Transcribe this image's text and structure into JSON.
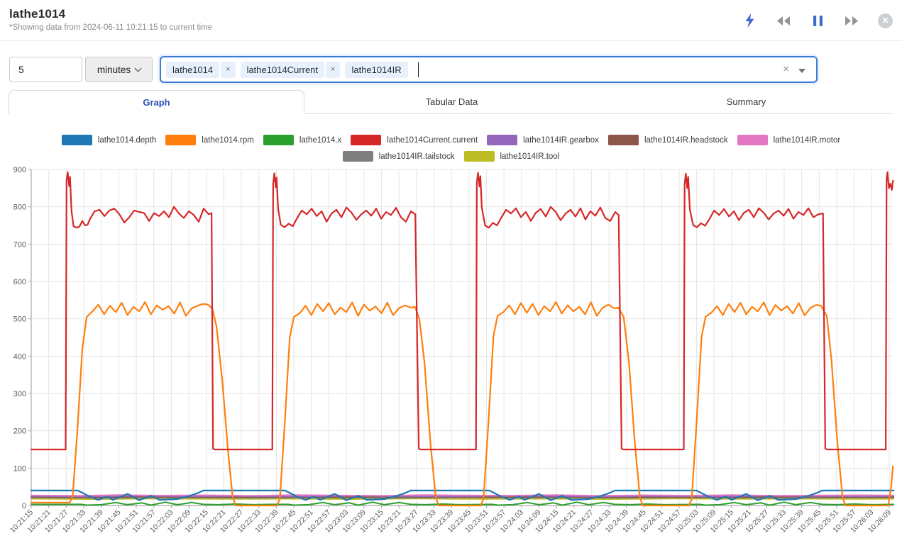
{
  "header": {
    "title": "lathe1014",
    "subtitle": "*Showing data from 2024-06-11 10:21:15 to current time",
    "toolbar_icons": [
      "lightning-icon",
      "rewind-icon",
      "pause-icon",
      "fast-forward-icon",
      "close-icon"
    ]
  },
  "controls": {
    "interval_value": "5",
    "interval_unit": "minutes",
    "selected_tags": [
      {
        "label": "lathe1014",
        "removable": true
      },
      {
        "label": "lathe1014Current",
        "removable": true
      },
      {
        "label": "lathe1014IR",
        "removable": false
      }
    ],
    "clear_icon": "×"
  },
  "tabs": [
    {
      "label": "Graph",
      "active": true
    },
    {
      "label": "Tabular Data",
      "active": false
    },
    {
      "label": "Summary",
      "active": false
    }
  ],
  "chart_data": {
    "type": "line",
    "title": "",
    "xlabel": "",
    "ylabel": "",
    "ylim": [
      0,
      900
    ],
    "y_ticks": [
      0,
      100,
      200,
      300,
      400,
      500,
      600,
      700,
      800,
      900
    ],
    "grid": true,
    "legend_position": "top-center",
    "legend_rows": [
      7,
      2
    ],
    "x_axis": "time (HH:MM:SS), one tick every 6 seconds",
    "x_tick_interval_seconds": 6,
    "x_tick_labels": [
      "10:21:15",
      "10:21:21",
      "10:21:27",
      "10:21:33",
      "10:21:39",
      "10:21:45",
      "10:21:51",
      "10:21:57",
      "10:22:03",
      "10:22:09",
      "10:22:15",
      "10:22:21",
      "10:22:27",
      "10:22:33",
      "10:22:39",
      "10:22:45",
      "10:22:51",
      "10:22:57",
      "10:23:03",
      "10:23:09",
      "10:23:15",
      "10:23:21",
      "10:23:27",
      "10:23:33",
      "10:23:39",
      "10:23:45",
      "10:23:51",
      "10:23:57",
      "10:24:03",
      "10:24:09",
      "10:24:15",
      "10:24:21",
      "10:24:27",
      "10:24:33",
      "10:24:39",
      "10:24:45",
      "10:24:51",
      "10:24:57",
      "10:25:03",
      "10:25:09",
      "10:25:15",
      "10:25:21",
      "10:25:27",
      "10:25:33",
      "10:25:39",
      "10:25:45",
      "10:25:51",
      "10:25:57",
      "10:26:03",
      "10:26:09"
    ],
    "points_format": "flat array [t0,v0,t1,v1,...] with t = seconds after 10:21:15",
    "draw_order": [
      "lathe1014IR.tool",
      "lathe1014IR.tailstock",
      "lathe1014IR.headstock",
      "lathe1014IR.gearbox",
      "lathe1014IR.motor",
      "lathe1014.x",
      "lathe1014.depth",
      "lathe1014.rpm",
      "lathe1014Current.current"
    ],
    "series": [
      {
        "name": "lathe1014.depth",
        "color": "#1f77b4",
        "points": [
          0,
          40,
          16,
          40,
          20,
          24,
          23,
          15,
          26,
          24,
          28,
          15,
          33,
          31,
          37,
          14,
          41,
          26,
          44,
          15,
          50,
          17,
          54,
          25,
          57,
          33,
          59,
          40,
          87,
          40,
          91,
          24,
          94,
          15,
          97,
          24,
          99,
          15,
          104,
          31,
          108,
          14,
          112,
          26,
          115,
          15,
          121,
          17,
          125,
          25,
          128,
          33,
          130,
          40,
          157,
          40,
          161,
          24,
          164,
          15,
          167,
          24,
          169,
          15,
          174,
          31,
          178,
          14,
          182,
          26,
          185,
          15,
          191,
          17,
          195,
          25,
          198,
          33,
          200,
          40,
          228,
          40,
          232,
          24,
          235,
          15,
          238,
          24,
          240,
          15,
          245,
          31,
          249,
          14,
          253,
          26,
          256,
          15,
          262,
          17,
          266,
          25,
          269,
          33,
          271,
          40,
          295.5,
          40
        ]
      },
      {
        "name": "lathe1014.rpm",
        "color": "#ff7f0e",
        "points": [
          0,
          8,
          13.2,
          8,
          14.2,
          25,
          15.8,
          200,
          17.5,
          420,
          19,
          505,
          21,
          520,
          23,
          538,
          25,
          512,
          27,
          535,
          29,
          518,
          31,
          543,
          33,
          510,
          35,
          532,
          37,
          520,
          39,
          545,
          41,
          512,
          43,
          536,
          45,
          524,
          47,
          534,
          49,
          514,
          51,
          544,
          53,
          508,
          55,
          528,
          57,
          535,
          59,
          540,
          60.5,
          538,
          62,
          528,
          63.5,
          480,
          65.5,
          330,
          67.5,
          140,
          69,
          25,
          70,
          0,
          84.2,
          0,
          85.2,
          18,
          86.8,
          210,
          88.6,
          450,
          90,
          505,
          92,
          515,
          94,
          535,
          96,
          510,
          98,
          540,
          100,
          520,
          102,
          542,
          104,
          512,
          106,
          530,
          108,
          518,
          110,
          544,
          112,
          508,
          114,
          538,
          116,
          522,
          118,
          533,
          120,
          515,
          122,
          543,
          124,
          510,
          126,
          528,
          128,
          536,
          130,
          530,
          131.5,
          532,
          133,
          500,
          134.8,
          380,
          136.8,
          165,
          138.6,
          22,
          139.6,
          0,
          154,
          0,
          155,
          18,
          156.6,
          215,
          158.4,
          455,
          159.8,
          508,
          161.8,
          518,
          163.8,
          536,
          165.8,
          512,
          167.8,
          542,
          169.8,
          516,
          171.8,
          540,
          173.8,
          510,
          175.8,
          534,
          177.8,
          520,
          179.8,
          545,
          181.8,
          514,
          183.8,
          536,
          185.8,
          520,
          187.8,
          532,
          189.8,
          512,
          191.8,
          544,
          193.8,
          508,
          195.8,
          530,
          197.8,
          538,
          199.8,
          528,
          201.2,
          530,
          203,
          505,
          204.8,
          385,
          206.8,
          170,
          208.6,
          20,
          209.6,
          0,
          225.3,
          0,
          226.3,
          16,
          227.9,
          212,
          229.7,
          452,
          231.1,
          506,
          233,
          516,
          235,
          534,
          237,
          510,
          239,
          540,
          241,
          518,
          243,
          543,
          245,
          512,
          247,
          532,
          249,
          520,
          251,
          544,
          253,
          510,
          255,
          537,
          257,
          522,
          259,
          534,
          261,
          514,
          263,
          542,
          265,
          509,
          267,
          529,
          269,
          537,
          270.6,
          535,
          272.6,
          508,
          274.2,
          390,
          276.2,
          172,
          278,
          22,
          279,
          0,
          293.6,
          0,
          294.6,
          45,
          295.3,
          105
        ]
      },
      {
        "name": "lathe1014.x",
        "color": "#2ca02c",
        "points": [
          0,
          3,
          17,
          3,
          19,
          1,
          24,
          2,
          29,
          8,
          33,
          2,
          38,
          7,
          41,
          1,
          46,
          9,
          50,
          2,
          55,
          8,
          59,
          3,
          64,
          2,
          70,
          4,
          76,
          2,
          82,
          3,
          88,
          3,
          90,
          1,
          95,
          2,
          100,
          8,
          104,
          2,
          109,
          7,
          112,
          1,
          117,
          9,
          121,
          2,
          126,
          8,
          130,
          3,
          135,
          2,
          141,
          4,
          147,
          2,
          158,
          3,
          160,
          1,
          165,
          2,
          170,
          8,
          174,
          2,
          179,
          7,
          182,
          1,
          187,
          9,
          191,
          2,
          196,
          8,
          200,
          3,
          205,
          2,
          211,
          4,
          217,
          2,
          229,
          3,
          231,
          1,
          236,
          2,
          241,
          8,
          245,
          2,
          250,
          7,
          253,
          1,
          258,
          9,
          262,
          2,
          267,
          8,
          271,
          3,
          276,
          2,
          282,
          4,
          288,
          2,
          295.5,
          3
        ]
      },
      {
        "name": "lathe1014Current.current",
        "color": "#d62728",
        "points": [
          0,
          150,
          11.8,
          150,
          12.1,
          870,
          12.5,
          893,
          13,
          855,
          13.3,
          880,
          13.8,
          790,
          14.5,
          748,
          15.5,
          744,
          16.5,
          747,
          17.5,
          762,
          18.5,
          750,
          19.3,
          752,
          20,
          765,
          21.7,
          788,
          23.4,
          792,
          25.1,
          775,
          26.8,
          790,
          28.5,
          795,
          30.2,
          780,
          31.9,
          758,
          33.6,
          772,
          35.3,
          790,
          37,
          786,
          38.7,
          783,
          40.4,
          762,
          42.1,
          783,
          43.8,
          775,
          45.5,
          788,
          47.2,
          772,
          48.9,
          800,
          50.6,
          782,
          52.3,
          770,
          54,
          788,
          55.7,
          778,
          57.4,
          760,
          59.1,
          795,
          60.8,
          780,
          61.8,
          783,
          62.3,
          152,
          63,
          150,
          82.6,
          150,
          82.9,
          862,
          83.3,
          890,
          83.8,
          852,
          84.1,
          878,
          84.6,
          795,
          85.5,
          752,
          86.8,
          745,
          88.2,
          755,
          89.6,
          748,
          91,
          768,
          92.7,
          790,
          94.4,
          780,
          96.1,
          795,
          97.8,
          775,
          99.5,
          788,
          101.2,
          760,
          102.9,
          782,
          104.6,
          792,
          106.3,
          772,
          108,
          798,
          109.7,
          785,
          111.4,
          765,
          113.1,
          780,
          114.8,
          790,
          116.5,
          776,
          118.2,
          795,
          119.9,
          768,
          121.6,
          786,
          123.3,
          778,
          125,
          797,
          126.7,
          772,
          128.4,
          760,
          130.1,
          788,
          131.6,
          780,
          132.8,
          152,
          133.5,
          150,
          152.4,
          150,
          152.7,
          865,
          153.1,
          891,
          153.6,
          854,
          153.9,
          882,
          154.4,
          798,
          155.5,
          750,
          156.8,
          744,
          158.2,
          757,
          159.6,
          750,
          161,
          770,
          162.7,
          792,
          164.4,
          782,
          166.1,
          796,
          167.8,
          772,
          169.5,
          786,
          171.2,
          762,
          172.9,
          784,
          174.6,
          794,
          176.3,
          774,
          178,
          800,
          179.7,
          786,
          181.4,
          764,
          183.1,
          782,
          184.8,
          792,
          186.5,
          774,
          188.2,
          796,
          189.9,
          766,
          191.6,
          788,
          193.3,
          776,
          195,
          798,
          196.7,
          770,
          198.4,
          762,
          200.1,
          786,
          201.3,
          778,
          202.3,
          152,
          203,
          150,
          223.6,
          150,
          223.9,
          860,
          224.3,
          889,
          224.8,
          850,
          225.1,
          880,
          225.7,
          792,
          226.8,
          751,
          228.1,
          745,
          229.5,
          756,
          230.9,
          749,
          232.3,
          766,
          234,
          790,
          235.7,
          778,
          237.4,
          794,
          239.1,
          774,
          240.8,
          788,
          242.5,
          764,
          244.2,
          784,
          245.9,
          792,
          247.6,
          772,
          249.3,
          796,
          251,
          784,
          252.7,
          766,
          254.4,
          782,
          256.1,
          790,
          257.8,
          776,
          259.5,
          794,
          261.2,
          768,
          262.9,
          786,
          264.6,
          778,
          266.3,
          796,
          268,
          772,
          269.7,
          780,
          271.3,
          782,
          272.1,
          152,
          272.8,
          150,
          292.8,
          150,
          293.1,
          875,
          293.4,
          893,
          293.9,
          850,
          294.4,
          862,
          294.9,
          845,
          295.3,
          870
        ]
      },
      {
        "name": "lathe1014IR.gearbox",
        "color": "#9467bd",
        "points": [
          0,
          25,
          18,
          24,
          36,
          26,
          54,
          24.5,
          72,
          25.5,
          90,
          24,
          108,
          26,
          126,
          25,
          144,
          24,
          162,
          26,
          180,
          25,
          198,
          24.5,
          216,
          25.5,
          234,
          24,
          252,
          26,
          270,
          25,
          285,
          24.5,
          295.5,
          25
        ]
      },
      {
        "name": "lathe1014IR.headstock",
        "color": "#8c564b",
        "points": [
          0,
          23,
          20,
          22,
          40,
          23.5,
          60,
          22.5,
          80,
          23,
          100,
          22,
          120,
          23.5,
          140,
          23,
          160,
          22,
          180,
          23.5,
          200,
          22.5,
          220,
          23,
          240,
          22,
          260,
          23.5,
          280,
          22.5,
          295.5,
          23
        ]
      },
      {
        "name": "lathe1014IR.motor",
        "color": "#e377c2",
        "points": [
          0,
          27,
          15,
          26,
          30,
          28,
          45,
          26.5,
          60,
          27.5,
          75,
          26,
          90,
          28,
          105,
          27,
          120,
          26,
          135,
          28,
          150,
          27,
          165,
          26.5,
          180,
          28,
          195,
          26,
          210,
          27.5,
          225,
          26.5,
          240,
          28,
          255,
          26,
          270,
          27,
          285,
          27.5,
          295.5,
          27
        ]
      },
      {
        "name": "lathe1014IR.tailstock",
        "color": "#7f7f7f",
        "points": [
          0,
          21,
          25,
          20.5,
          50,
          21.5,
          75,
          20.5,
          100,
          21,
          125,
          20.5,
          150,
          21.5,
          175,
          21,
          200,
          20.5,
          225,
          21.5,
          250,
          20.5,
          275,
          21,
          295.5,
          21
        ]
      },
      {
        "name": "lathe1014IR.tool",
        "color": "#bcbd22",
        "points": [
          0,
          18,
          22,
          17,
          44,
          18.5,
          66,
          17.5,
          88,
          18,
          110,
          17,
          132,
          18.5,
          154,
          17.5,
          176,
          18,
          198,
          17,
          220,
          18.5,
          242,
          17.5,
          264,
          18,
          285,
          17.5,
          295.5,
          18
        ]
      }
    ]
  }
}
